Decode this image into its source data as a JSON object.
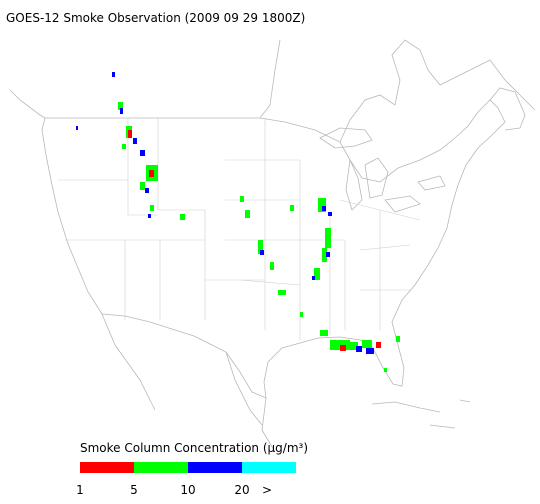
{
  "title": "GOES-12 Smoke Observation (2009 09 29  1800Z)",
  "legend": {
    "label": "Smoke Column Concentration (μg/m³)",
    "colors": [
      "#ff0000",
      "#00ff00",
      "#0000ff",
      "#00ffff"
    ],
    "ticks": [
      "1",
      "5",
      "10",
      "20",
      ">"
    ]
  }
}
